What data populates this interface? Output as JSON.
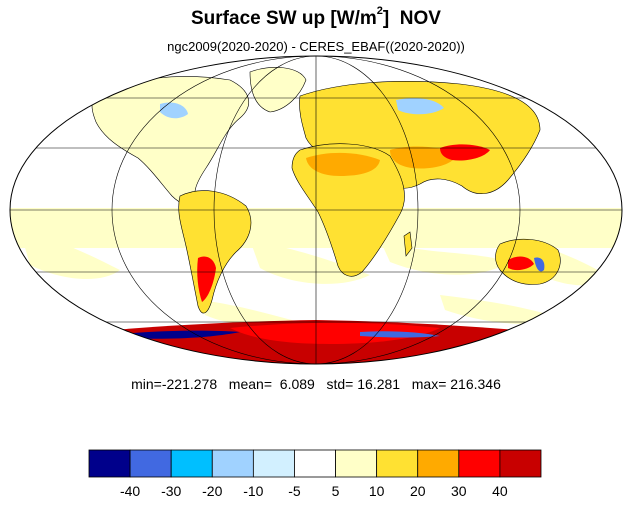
{
  "title": {
    "prefix": "Surface SW up [W/m",
    "superscript": "2",
    "suffix": "]  NOV"
  },
  "subtitle": "ngc2009(2020-2020) - CERES_EBAF((2020-2020))",
  "stats": {
    "min_label": "min=",
    "min": "-221.278",
    "mean_label": "mean=",
    "mean": "6.089",
    "std_label": "std=",
    "std": "16.281",
    "max_label": "max=",
    "max": "216.346"
  },
  "colorbar": {
    "colors": [
      "#00008b",
      "#4169e1",
      "#00bfff",
      "#a0d2ff",
      "#d2f0ff",
      "#ffffff",
      "#ffffc8",
      "#ffe132",
      "#ffaa00",
      "#ff0000",
      "#c80000"
    ],
    "labels": [
      "-40",
      "-30",
      "-20",
      "-10",
      "-5",
      "5",
      "10",
      "20",
      "30",
      "40"
    ]
  },
  "map": {
    "projection": "Mollweide",
    "colors": {
      "ocean_light": "#ffffc8",
      "land_yellow": "#ffe132",
      "land_orange": "#ffaa00",
      "red": "#ff0000",
      "dark_red": "#c80000",
      "light_blue": "#a0d2ff",
      "blue": "#4169e1",
      "navy": "#00008b",
      "grid": "#000000"
    }
  }
}
